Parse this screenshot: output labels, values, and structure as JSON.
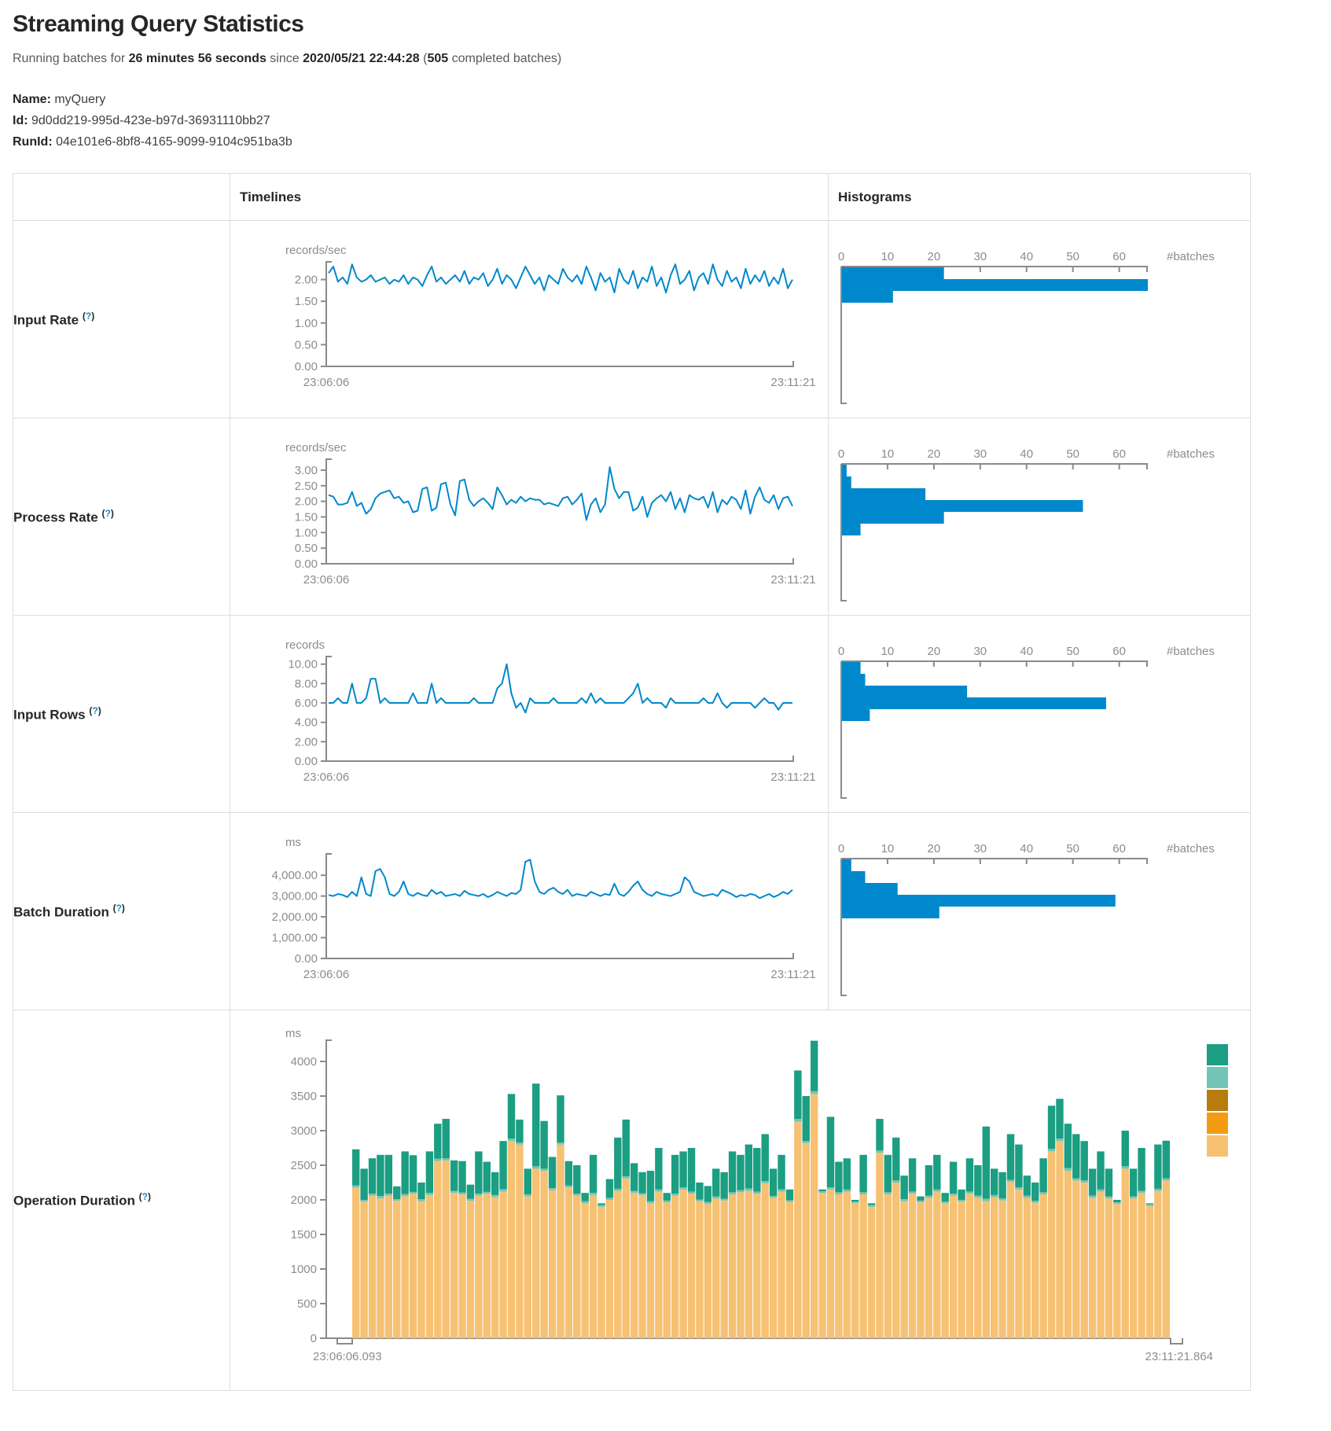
{
  "page": {
    "title": "Streaming Query Statistics",
    "subtitle": {
      "prefix": "Running batches for ",
      "duration": "26 minutes 56 seconds",
      "mid": " since ",
      "start_time": "2020/05/21 22:44:28",
      "paren_open": " (",
      "completed_count": "505",
      "suffix": " completed batches)"
    },
    "meta": {
      "name_label": "Name:",
      "name_value": " myQuery",
      "id_label": "Id:",
      "id_value": " 9d0dd219-995d-423e-b97d-36931110bb27",
      "runid_label": "RunId:",
      "runid_value": " 04e101e6-8bf8-4165-9099-9104c951ba3b"
    }
  },
  "ui": {
    "help_open": "(",
    "help_q": "?",
    "help_close": ")"
  },
  "table": {
    "timelines_header": "Timelines",
    "histograms_header": "Histograms"
  },
  "rows": [
    {
      "label": "Input Rate"
    },
    {
      "label": "Process Rate"
    },
    {
      "label": "Input Rows"
    },
    {
      "label": "Batch Duration"
    },
    {
      "label": "Operation Duration"
    }
  ],
  "colors": {
    "blue": "#0088cc",
    "axis": "#8a8a8a",
    "tick_text": "#8c8c8c",
    "legend": [
      "#1b9e82",
      "#73c6b6",
      "#b87b0d",
      "#f39c12",
      "#f6c173"
    ]
  },
  "chart_data": {
    "input_rate_timeline": {
      "type": "line",
      "unit": "records/sec",
      "x_start": "23:06:06",
      "x_end": "23:11:21",
      "y_max": 2.3,
      "y_ticks": [
        {
          "v": 0,
          "t": "0.00"
        },
        {
          "v": 0.5,
          "t": "0.50"
        },
        {
          "v": 1,
          "t": "1.00"
        },
        {
          "v": 1.5,
          "t": "1.50"
        },
        {
          "v": 2,
          "t": "2.00"
        }
      ],
      "values": [
        2.15,
        2.3,
        1.95,
        2.05,
        1.9,
        2.35,
        2.05,
        1.95,
        2.0,
        2.1,
        1.95,
        2.0,
        2.05,
        1.9,
        2.0,
        1.95,
        2.1,
        1.9,
        2.05,
        2.0,
        1.85,
        2.1,
        2.3,
        1.95,
        2.05,
        1.9,
        2.0,
        2.1,
        1.95,
        2.2,
        1.9,
        2.05,
        2.0,
        2.15,
        1.85,
        2.0,
        2.25,
        1.9,
        2.1,
        2.0,
        1.8,
        2.05,
        2.3,
        2.1,
        1.9,
        2.05,
        1.75,
        2.1,
        2.0,
        1.9,
        2.25,
        2.05,
        1.95,
        2.1,
        1.9,
        2.3,
        2.05,
        1.75,
        2.15,
        1.95,
        2.05,
        1.7,
        2.25,
        2.0,
        1.9,
        2.2,
        1.8,
        2.05,
        1.95,
        2.3,
        1.85,
        2.05,
        1.7,
        2.1,
        2.35,
        1.9,
        2.0,
        2.2,
        1.75,
        2.05,
        2.15,
        1.9,
        2.35,
        2.0,
        1.85,
        2.2,
        1.95,
        2.05,
        1.8,
        2.25,
        1.9,
        2.1,
        1.95,
        2.2,
        1.85,
        2.05,
        1.9,
        2.25,
        1.8,
        2.0
      ]
    },
    "input_rate_histogram": {
      "type": "bar-horizontal",
      "axis_label": "#batches",
      "axis_max": 66,
      "x_ticks": [
        {
          "v": 0,
          "t": "0"
        },
        {
          "v": 10,
          "t": "10"
        },
        {
          "v": 20,
          "t": "20"
        },
        {
          "v": 30,
          "t": "30"
        },
        {
          "v": 40,
          "t": "40"
        },
        {
          "v": 50,
          "t": "50"
        },
        {
          "v": 60,
          "t": "60"
        }
      ],
      "bars": [
        22,
        66,
        11
      ]
    },
    "process_rate_timeline": {
      "type": "line",
      "unit": "records/sec",
      "x_start": "23:06:06",
      "x_end": "23:11:21",
      "y_max": 3.2,
      "y_ticks": [
        {
          "v": 0,
          "t": "0.00"
        },
        {
          "v": 0.5,
          "t": "0.50"
        },
        {
          "v": 1,
          "t": "1.00"
        },
        {
          "v": 1.5,
          "t": "1.50"
        },
        {
          "v": 2,
          "t": "2.00"
        },
        {
          "v": 2.5,
          "t": "2.50"
        },
        {
          "v": 3,
          "t": "3.00"
        }
      ],
      "values": [
        2.2,
        2.15,
        1.9,
        1.9,
        1.95,
        2.3,
        1.85,
        1.95,
        1.6,
        1.75,
        2.1,
        2.25,
        2.3,
        2.35,
        2.1,
        2.15,
        1.95,
        2.0,
        1.65,
        1.7,
        2.4,
        2.45,
        1.7,
        1.8,
        2.55,
        2.6,
        1.9,
        1.55,
        2.65,
        2.7,
        2.05,
        1.85,
        2.0,
        2.1,
        1.95,
        1.75,
        2.45,
        2.2,
        1.9,
        2.05,
        1.95,
        2.15,
        2.0,
        2.1,
        2.05,
        2.05,
        1.9,
        1.95,
        1.9,
        1.85,
        2.1,
        2.15,
        1.9,
        2.05,
        2.25,
        1.4,
        1.9,
        2.1,
        1.65,
        1.9,
        3.1,
        2.4,
        2.1,
        2.3,
        2.3,
        1.7,
        1.8,
        2.15,
        1.5,
        1.95,
        2.1,
        2.2,
        2.0,
        2.3,
        1.75,
        2.1,
        1.65,
        2.2,
        2.1,
        2.05,
        2.15,
        1.8,
        2.3,
        1.65,
        2.05,
        1.9,
        2.15,
        2.05,
        1.75,
        2.35,
        1.6,
        2.15,
        2.45,
        2.05,
        1.95,
        2.2,
        1.75,
        2.1,
        2.15,
        1.85
      ]
    },
    "process_rate_histogram": {
      "type": "bar-horizontal",
      "axis_label": "#batches",
      "axis_max": 66,
      "x_ticks": [
        {
          "v": 0,
          "t": "0"
        },
        {
          "v": 10,
          "t": "10"
        },
        {
          "v": 20,
          "t": "20"
        },
        {
          "v": 30,
          "t": "30"
        },
        {
          "v": 40,
          "t": "40"
        },
        {
          "v": 50,
          "t": "50"
        },
        {
          "v": 60,
          "t": "60"
        }
      ],
      "bars": [
        1,
        2,
        18,
        52,
        22,
        4
      ]
    },
    "input_rows_timeline": {
      "type": "line",
      "unit": "records",
      "x_start": "23:06:06",
      "x_end": "23:11:21",
      "y_max": 10.3,
      "y_ticks": [
        {
          "v": 0,
          "t": "0.00"
        },
        {
          "v": 2,
          "t": "2.00"
        },
        {
          "v": 4,
          "t": "4.00"
        },
        {
          "v": 6,
          "t": "6.00"
        },
        {
          "v": 8,
          "t": "8.00"
        },
        {
          "v": 10,
          "t": "10.00"
        }
      ],
      "values": [
        6,
        6,
        6.5,
        6,
        6,
        8,
        6,
        6,
        6.5,
        8.5,
        8.5,
        6,
        6.5,
        6,
        6,
        6,
        6,
        6,
        7,
        6,
        6,
        6,
        8,
        6,
        6.5,
        6,
        6,
        6,
        6,
        6,
        6,
        6.5,
        6,
        6,
        6,
        6,
        7.5,
        8,
        10,
        7,
        5.5,
        6,
        5,
        6.5,
        6,
        6,
        6,
        6,
        6.5,
        6,
        6,
        6,
        6,
        6,
        6.5,
        6,
        7,
        6,
        6.5,
        6,
        6,
        6,
        6,
        6,
        6.5,
        7,
        8,
        6,
        6.5,
        6,
        6,
        6,
        5.5,
        6.5,
        6,
        6,
        6,
        6,
        6,
        6,
        6.5,
        6,
        6,
        7,
        6,
        5.5,
        6,
        6,
        6,
        6,
        6,
        5.5,
        6,
        6.5,
        6,
        6,
        5.3,
        6,
        6,
        6
      ]
    },
    "input_rows_histogram": {
      "type": "bar-horizontal",
      "axis_label": "#batches",
      "axis_max": 66,
      "x_ticks": [
        {
          "v": 0,
          "t": "0"
        },
        {
          "v": 10,
          "t": "10"
        },
        {
          "v": 20,
          "t": "20"
        },
        {
          "v": 30,
          "t": "30"
        },
        {
          "v": 40,
          "t": "40"
        },
        {
          "v": 50,
          "t": "50"
        },
        {
          "v": 60,
          "t": "60"
        }
      ],
      "bars": [
        4,
        5,
        27,
        57,
        6
      ]
    },
    "batch_duration_timeline": {
      "type": "line",
      "unit": "ms",
      "x_start": "23:06:06",
      "x_end": "23:11:21",
      "y_max": 4800,
      "y_ticks": [
        {
          "v": 0,
          "t": "0.00"
        },
        {
          "v": 1000,
          "t": "1,000.00"
        },
        {
          "v": 2000,
          "t": "2,000.00"
        },
        {
          "v": 3000,
          "t": "3,000.00"
        },
        {
          "v": 4000,
          "t": "4,000.00"
        }
      ],
      "values": [
        3050,
        3000,
        3100,
        3050,
        2950,
        3200,
        3000,
        3900,
        3100,
        3000,
        4200,
        4300,
        3900,
        3100,
        3000,
        3200,
        3700,
        3100,
        3000,
        3150,
        3050,
        3000,
        3300,
        3100,
        3200,
        3000,
        3050,
        3100,
        3000,
        3250,
        3100,
        3050,
        3000,
        3100,
        2950,
        3050,
        3200,
        3100,
        3000,
        3150,
        3100,
        3300,
        4650,
        4750,
        3700,
        3200,
        3100,
        3300,
        3400,
        3200,
        3100,
        3300,
        3000,
        3100,
        3050,
        3000,
        3200,
        3100,
        3000,
        3100,
        3050,
        3600,
        3100,
        3000,
        3200,
        3500,
        3700,
        3300,
        3100,
        3000,
        3200,
        3100,
        3050,
        3000,
        3100,
        3200,
        3900,
        3700,
        3200,
        3100,
        3000,
        3050,
        3100,
        3000,
        3300,
        3200,
        3100,
        2950,
        3050,
        3000,
        3100,
        3050,
        2900,
        3000,
        3100,
        2950,
        3050,
        3200,
        3100,
        3300
      ]
    },
    "batch_duration_histogram": {
      "type": "bar-horizontal",
      "axis_label": "#batches",
      "axis_max": 66,
      "x_ticks": [
        {
          "v": 0,
          "t": "0"
        },
        {
          "v": 10,
          "t": "10"
        },
        {
          "v": 20,
          "t": "20"
        },
        {
          "v": 30,
          "t": "30"
        },
        {
          "v": 40,
          "t": "40"
        },
        {
          "v": 50,
          "t": "50"
        },
        {
          "v": 60,
          "t": "60"
        }
      ],
      "bars": [
        2,
        5,
        12,
        59,
        21
      ]
    },
    "operation_duration": {
      "type": "stacked-bar",
      "unit": "ms",
      "x_start": "23:06:06.093",
      "x_end": "23:11:21.864",
      "y_ticks": [
        {
          "v": 0,
          "t": "0"
        },
        {
          "v": 500,
          "t": "500"
        },
        {
          "v": 1000,
          "t": "1000"
        },
        {
          "v": 1500,
          "t": "1500"
        },
        {
          "v": 2000,
          "t": "2000"
        },
        {
          "v": 2500,
          "t": "2500"
        },
        {
          "v": 3000,
          "t": "3000"
        },
        {
          "v": 3500,
          "t": "3500"
        },
        {
          "v": 4000,
          "t": "4000"
        }
      ],
      "stack_colors": [
        "#f6c173",
        "#73c6b6",
        "#1b9e82"
      ],
      "legend_colors": [
        "#1b9e82",
        "#73c6b6",
        "#b87b0d",
        "#f39c12",
        "#f6c173"
      ],
      "bars": [
        [
          2180,
          30,
          520
        ],
        [
          1975,
          25,
          450
        ],
        [
          2060,
          30,
          510
        ],
        [
          2020,
          35,
          595
        ],
        [
          2060,
          30,
          560
        ],
        [
          1985,
          25,
          185
        ],
        [
          2055,
          30,
          615
        ],
        [
          2090,
          25,
          530
        ],
        [
          1980,
          30,
          240
        ],
        [
          2070,
          30,
          600
        ],
        [
          2560,
          35,
          505
        ],
        [
          2570,
          30,
          570
        ],
        [
          2100,
          30,
          440
        ],
        [
          2080,
          25,
          455
        ],
        [
          1985,
          30,
          205
        ],
        [
          2060,
          30,
          610
        ],
        [
          2090,
          25,
          435
        ],
        [
          2040,
          30,
          330
        ],
        [
          2120,
          35,
          695
        ],
        [
          2850,
          35,
          645
        ],
        [
          2800,
          30,
          330
        ],
        [
          2050,
          30,
          370
        ],
        [
          2450,
          35,
          1195
        ],
        [
          2420,
          30,
          690
        ],
        [
          2140,
          30,
          450
        ],
        [
          2800,
          30,
          680
        ],
        [
          2180,
          30,
          350
        ],
        [
          2060,
          30,
          410
        ],
        [
          1950,
          30,
          120
        ],
        [
          2070,
          30,
          550
        ],
        [
          1900,
          25,
          25
        ],
        [
          2000,
          30,
          270
        ],
        [
          2130,
          30,
          740
        ],
        [
          2310,
          30,
          820
        ],
        [
          2100,
          30,
          400
        ],
        [
          2070,
          25,
          305
        ],
        [
          1950,
          30,
          440
        ],
        [
          2120,
          30,
          600
        ],
        [
          1965,
          25,
          110
        ],
        [
          2060,
          30,
          560
        ],
        [
          2150,
          30,
          520
        ],
        [
          2090,
          30,
          630
        ],
        [
          1980,
          25,
          245
        ],
        [
          1940,
          30,
          230
        ],
        [
          2020,
          30,
          400
        ],
        [
          1990,
          25,
          385
        ],
        [
          2080,
          30,
          590
        ],
        [
          2110,
          30,
          510
        ],
        [
          2130,
          35,
          635
        ],
        [
          2090,
          30,
          630
        ],
        [
          2240,
          30,
          680
        ],
        [
          2030,
          25,
          395
        ],
        [
          2120,
          30,
          500
        ],
        [
          1970,
          25,
          155
        ],
        [
          3130,
          40,
          700
        ],
        [
          2820,
          30,
          650
        ],
        [
          3530,
          40,
          730
        ],
        [
          2100,
          25,
          25
        ],
        [
          2150,
          30,
          1020
        ],
        [
          2080,
          30,
          440
        ],
        [
          2120,
          30,
          450
        ],
        [
          1950,
          25,
          25
        ],
        [
          2080,
          30,
          540
        ],
        [
          1900,
          25,
          25
        ],
        [
          2680,
          35,
          455
        ],
        [
          2080,
          30,
          540
        ],
        [
          2250,
          30,
          620
        ],
        [
          1980,
          30,
          340
        ],
        [
          2090,
          30,
          480
        ],
        [
          1965,
          25,
          60
        ],
        [
          2030,
          30,
          440
        ],
        [
          2120,
          30,
          500
        ],
        [
          1950,
          25,
          125
        ],
        [
          2060,
          30,
          460
        ],
        [
          1975,
          25,
          150
        ],
        [
          2090,
          30,
          480
        ],
        [
          2030,
          30,
          440
        ],
        [
          1980,
          35,
          1045
        ],
        [
          2040,
          30,
          380
        ],
        [
          1990,
          30,
          380
        ],
        [
          2260,
          30,
          660
        ],
        [
          2150,
          30,
          620
        ],
        [
          2030,
          30,
          290
        ],
        [
          1960,
          25,
          265
        ],
        [
          2080,
          30,
          490
        ],
        [
          2700,
          35,
          625
        ],
        [
          2850,
          35,
          575
        ],
        [
          2420,
          40,
          640
        ],
        [
          2280,
          30,
          640
        ],
        [
          2250,
          30,
          570
        ],
        [
          2030,
          30,
          390
        ],
        [
          2120,
          30,
          550
        ],
        [
          2020,
          30,
          400
        ],
        [
          1940,
          25,
          35
        ],
        [
          2450,
          35,
          515
        ],
        [
          2020,
          30,
          400
        ],
        [
          2100,
          30,
          620
        ],
        [
          1910,
          25,
          15
        ],
        [
          2130,
          30,
          640
        ],
        [
          2280,
          30,
          545
        ]
      ]
    }
  }
}
